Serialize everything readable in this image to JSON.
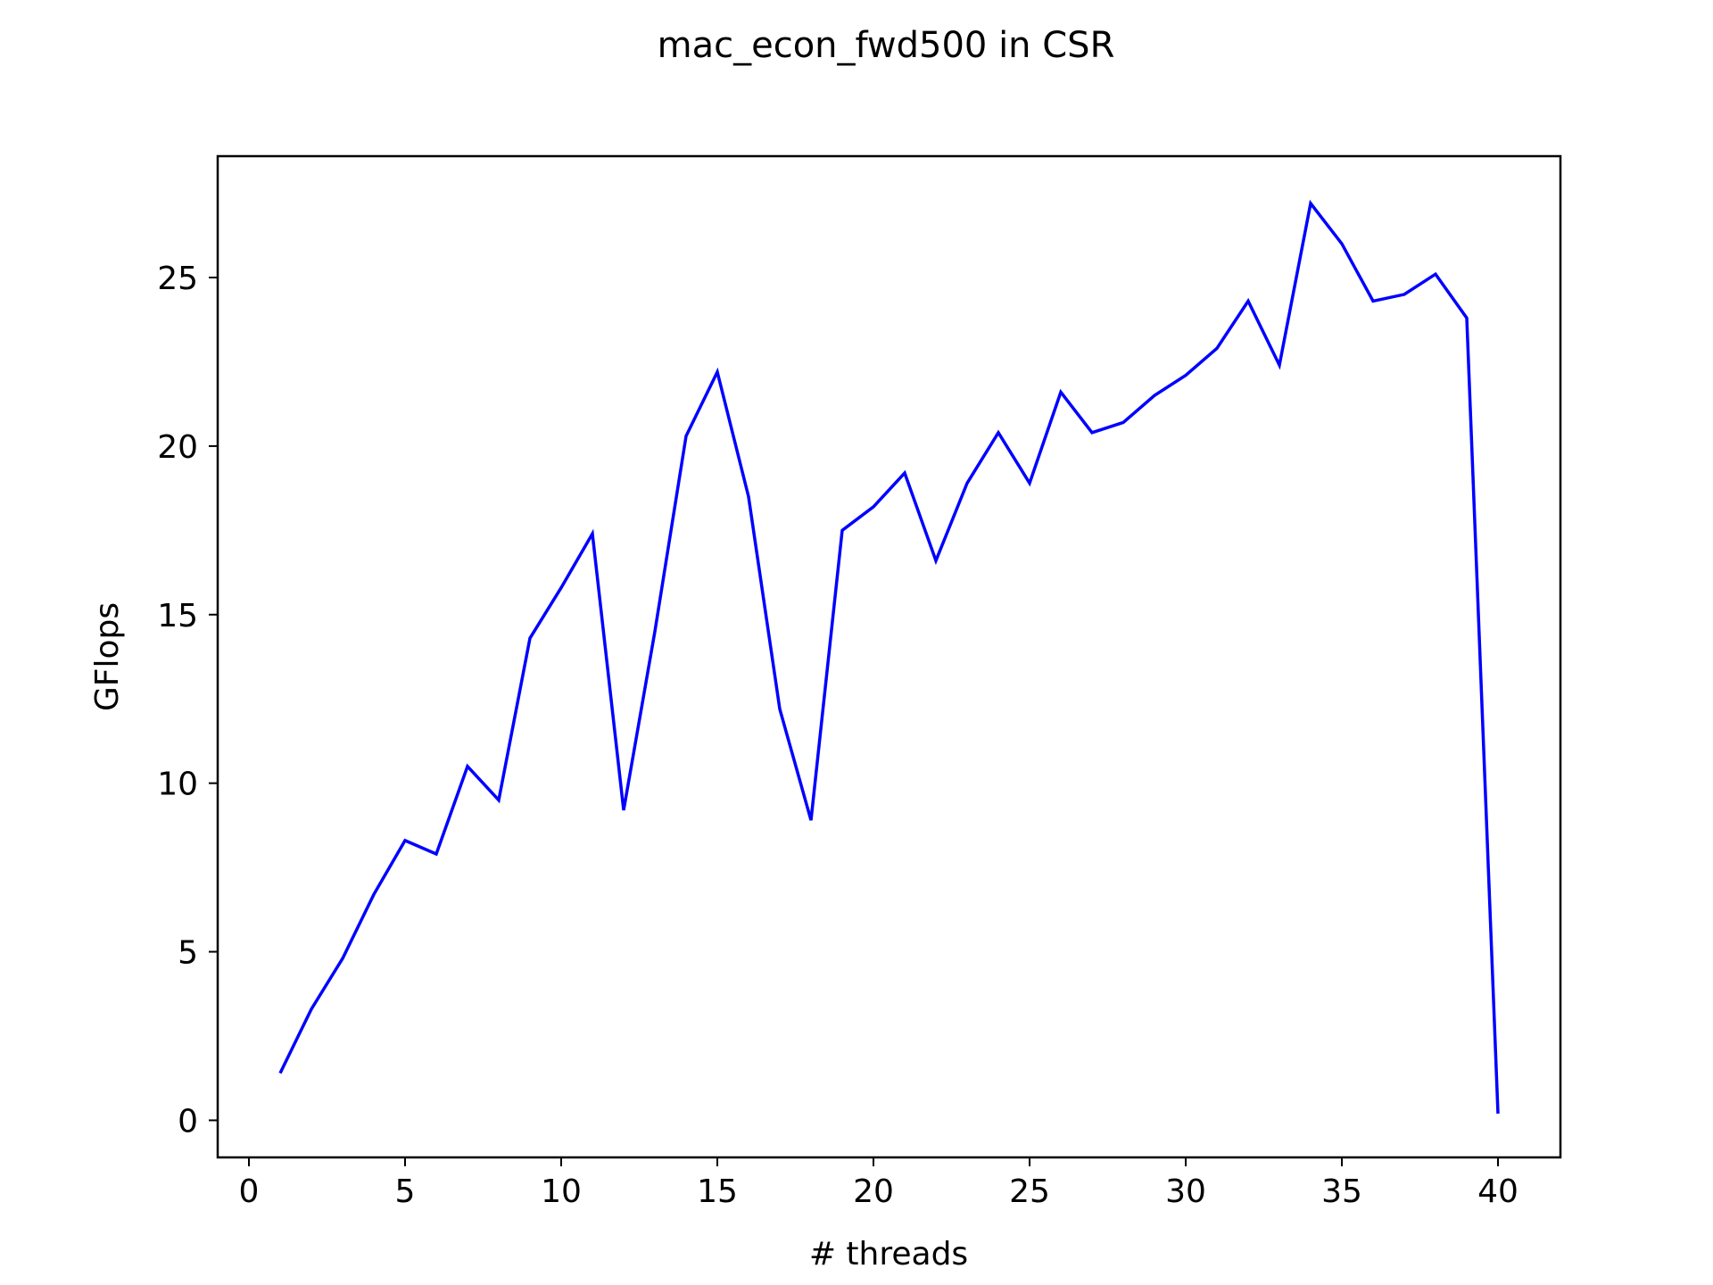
{
  "chart_data": {
    "type": "line",
    "title": "mac_econ_fwd500 in CSR",
    "xlabel": "# threads",
    "ylabel": "GFlops",
    "xlim": [
      -1,
      42
    ],
    "ylim": [
      -1.1,
      28.6
    ],
    "xticks": [
      0,
      5,
      10,
      15,
      20,
      25,
      30,
      35,
      40
    ],
    "yticks": [
      0,
      5,
      10,
      15,
      20,
      25
    ],
    "grid": false,
    "series": [
      {
        "color": "#0000ff",
        "x": [
          1,
          2,
          3,
          4,
          5,
          6,
          7,
          8,
          9,
          10,
          11,
          12,
          13,
          14,
          15,
          16,
          17,
          18,
          19,
          20,
          21,
          22,
          23,
          24,
          25,
          26,
          27,
          28,
          29,
          30,
          31,
          32,
          33,
          34,
          35,
          36,
          37,
          38,
          39,
          40
        ],
        "values": [
          1.4,
          3.3,
          4.8,
          6.7,
          8.3,
          7.9,
          10.5,
          9.5,
          14.3,
          15.8,
          17.4,
          9.2,
          14.5,
          20.3,
          22.2,
          18.5,
          12.2,
          8.9,
          17.5,
          18.2,
          19.2,
          16.6,
          18.9,
          20.4,
          18.9,
          21.6,
          20.4,
          20.7,
          21.5,
          22.1,
          22.9,
          24.3,
          22.4,
          27.2,
          26.0,
          24.3,
          24.5,
          25.1,
          23.8,
          0.2
        ]
      }
    ]
  }
}
